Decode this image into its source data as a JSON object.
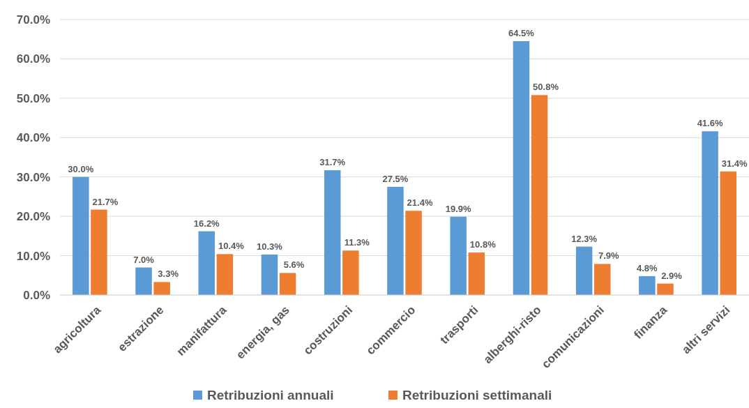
{
  "chart_data": {
    "type": "bar",
    "categories": [
      "agricoltura",
      "estrazione",
      "manifattura",
      "energia, gas",
      "costruzioni",
      "commercio",
      "trasporti",
      "alberghi-risto",
      "comunicazioni",
      "finanza",
      "altri servizi"
    ],
    "series": [
      {
        "name": "Retribuzioni annuali",
        "color": "#5b9bd5",
        "values": [
          30.0,
          7.0,
          16.2,
          10.3,
          31.7,
          27.5,
          19.9,
          64.5,
          12.3,
          4.8,
          41.6
        ],
        "value_labels": [
          "30.0%",
          "7.0%",
          "16.2%",
          "10.3%",
          "31.7%",
          "27.5%",
          "19.9%",
          "64.5%",
          "12.3%",
          "4.8%",
          "41.6%"
        ]
      },
      {
        "name": "Retribuzioni settimanali",
        "color": "#ed7d31",
        "values": [
          21.7,
          3.3,
          10.4,
          5.6,
          11.3,
          21.4,
          10.8,
          50.8,
          7.9,
          2.9,
          31.4
        ],
        "value_labels": [
          "21.7%",
          "3.3%",
          "10.4%",
          "5.6%",
          "11.3%",
          "21.4%",
          "10.8%",
          "50.8%",
          "7.9%",
          "2.9%",
          "31.4%"
        ]
      }
    ],
    "ylim": [
      0,
      70
    ],
    "yticks": [
      {
        "value": 0,
        "label": "0.0%"
      },
      {
        "value": 10,
        "label": "10.0%"
      },
      {
        "value": 20,
        "label": "20.0%"
      },
      {
        "value": 30,
        "label": "30.0%"
      },
      {
        "value": 40,
        "label": "40.0%"
      },
      {
        "value": 50,
        "label": "50.0%"
      },
      {
        "value": 60,
        "label": "60.0%"
      },
      {
        "value": 70,
        "label": "70.0%"
      }
    ],
    "grid": "y",
    "legend": "bottom"
  }
}
